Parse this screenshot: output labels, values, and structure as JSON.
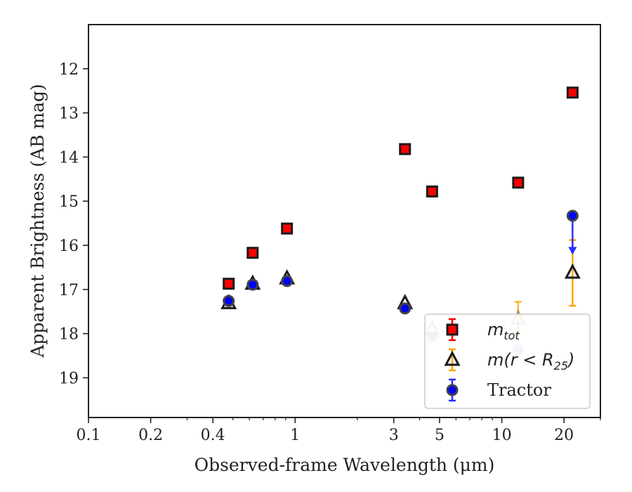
{
  "chart_data": {
    "type": "scatter",
    "xscale": "log",
    "xlim": [
      0.1,
      30
    ],
    "ylim": [
      19.9,
      11.0
    ],
    "y_inverted": true,
    "xlabel": "Observed-frame Wavelength (μm)",
    "ylabel": "Apparent Brightness (AB mag)",
    "x_ticks": [
      {
        "value": 0.1,
        "label": "0.1"
      },
      {
        "value": 0.2,
        "label": "0.2"
      },
      {
        "value": 0.4,
        "label": "0.4"
      },
      {
        "value": 1,
        "label": "1"
      },
      {
        "value": 3,
        "label": "3"
      },
      {
        "value": 5,
        "label": "5"
      },
      {
        "value": 10,
        "label": "10"
      },
      {
        "value": 20,
        "label": "20"
      }
    ],
    "y_ticks": [
      {
        "value": 12,
        "label": "12"
      },
      {
        "value": 13,
        "label": "13"
      },
      {
        "value": 14,
        "label": "14"
      },
      {
        "value": 15,
        "label": "15"
      },
      {
        "value": 16,
        "label": "16"
      },
      {
        "value": 17,
        "label": "17"
      },
      {
        "value": 18,
        "label": "18"
      },
      {
        "value": 19,
        "label": "19"
      }
    ],
    "legend": {
      "position": "lower-right",
      "entries": [
        {
          "series": "mtot",
          "text": "m",
          "sub": "tot",
          "math": true
        },
        {
          "series": "mr25",
          "text": "m(r < R",
          "sub": "25",
          "suffix": ")",
          "math": true
        },
        {
          "series": "tractor",
          "text": "Tractor",
          "math": false
        }
      ]
    },
    "series": [
      {
        "key": "mtot",
        "marker": "square",
        "fill": "#ff0000",
        "edge": "#1a1a1a",
        "errcolor": "#ff0000",
        "points": [
          {
            "x": 0.477,
            "y": 16.87
          },
          {
            "x": 0.623,
            "y": 16.17
          },
          {
            "x": 0.913,
            "y": 15.62
          },
          {
            "x": 3.4,
            "y": 13.82
          },
          {
            "x": 4.6,
            "y": 14.78
          },
          {
            "x": 12.0,
            "y": 14.58
          },
          {
            "x": 22.0,
            "y": 12.54
          }
        ]
      },
      {
        "key": "mr25",
        "marker": "triangle",
        "fill": "none",
        "edge": "#1a1a1a",
        "errcolor": "#ffa500",
        "points": [
          {
            "x": 0.477,
            "y": 17.31
          },
          {
            "x": 0.623,
            "y": 16.87
          },
          {
            "x": 0.913,
            "y": 16.75
          },
          {
            "x": 3.4,
            "y": 17.31
          },
          {
            "x": 4.6,
            "y": 17.9,
            "faded": true
          },
          {
            "x": 12.0,
            "y": 17.66,
            "faded": true,
            "err": [
              17.28,
              18.0
            ]
          },
          {
            "x": 22.0,
            "y": 16.62,
            "err": [
              15.88,
              17.37
            ]
          }
        ]
      },
      {
        "key": "tractor",
        "marker": "circle",
        "fill": "#0000ff",
        "edge": "#444444",
        "errcolor": "#2b2bff",
        "points": [
          {
            "x": 0.477,
            "y": 17.26
          },
          {
            "x": 0.623,
            "y": 16.89
          },
          {
            "x": 0.913,
            "y": 16.81
          },
          {
            "x": 3.4,
            "y": 17.43
          },
          {
            "x": 4.6,
            "y": 18.06,
            "faded": true
          },
          {
            "x": 12.0,
            "y": 18.37,
            "faded": true
          },
          {
            "x": 22.0,
            "y": 15.33,
            "upper_limit_to": 16.18
          }
        ]
      }
    ]
  }
}
